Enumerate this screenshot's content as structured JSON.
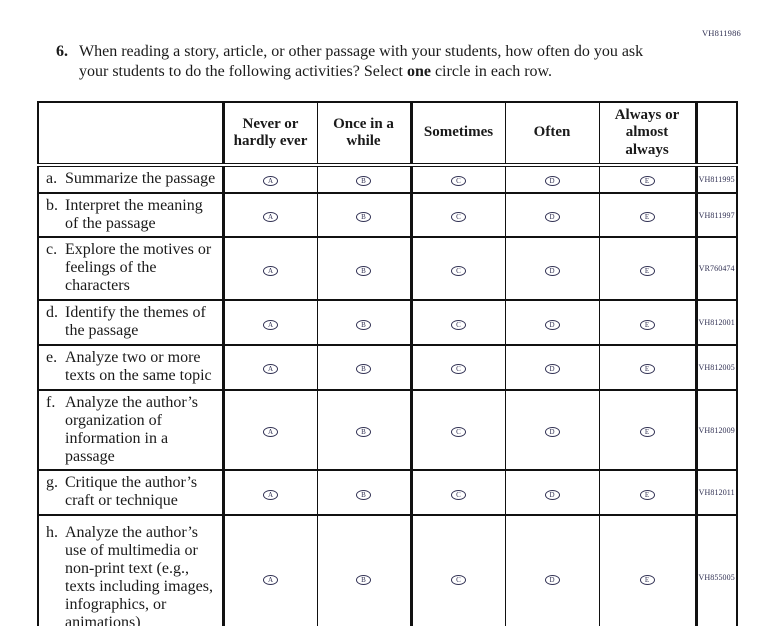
{
  "page": {
    "top_right_code": "VH811986"
  },
  "question": {
    "number": "6.",
    "text_before_bold": "When reading a story, article, or other passage with your students, how often do you ask your students to do the following activities? Select ",
    "bold_word": "one",
    "text_after_bold": " circle in each row."
  },
  "table": {
    "columns": [
      "Never or hardly ever",
      "Once in a while",
      "Sometimes",
      "Often",
      "Always or almost always"
    ],
    "option_letters": [
      "A",
      "B",
      "C",
      "D",
      "E"
    ],
    "rows": [
      {
        "letter": "a.",
        "label": "Summarize the passage",
        "code": "VH811995"
      },
      {
        "letter": "b.",
        "label": "Interpret the meaning of the passage",
        "code": "VH811997"
      },
      {
        "letter": "c.",
        "label": "Explore the motives or feelings of the characters",
        "code": "VR760474"
      },
      {
        "letter": "d.",
        "label": "Identify the themes of the passage",
        "code": "VH812001"
      },
      {
        "letter": "e.",
        "label": "Analyze two or more texts on the same topic",
        "code": "VH812005"
      },
      {
        "letter": "f.",
        "label": "Analyze the author’s organization of information in a passage",
        "code": "VH812009"
      },
      {
        "letter": "g.",
        "label": "Critique the author’s craft or technique",
        "code": "VH812011"
      },
      {
        "letter": "h.",
        "label": "Analyze the author’s use of multimedia or non-print text (e.g., texts including images, infographics, or animations)",
        "code": "VH855005"
      }
    ]
  },
  "colors": {
    "ink": "#1a1a1a",
    "code-ink": "#323254",
    "border": "#111111"
  }
}
